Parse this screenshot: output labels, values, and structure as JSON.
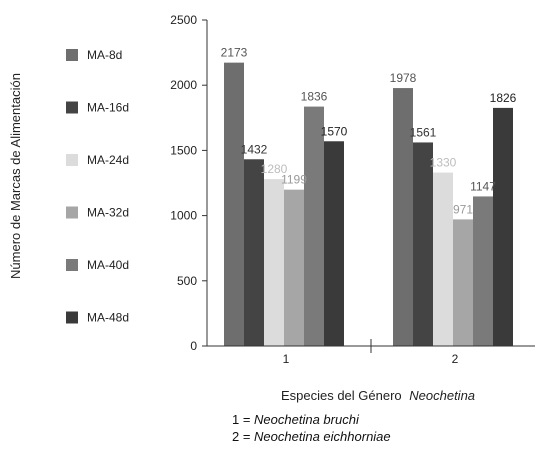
{
  "chart_data": {
    "type": "bar",
    "title": "",
    "xlabel": "Especies del Género",
    "xlabel_italic": "Neochetina",
    "ylabel": "Número de Marcas de Alimentación",
    "categories": [
      "1",
      "2"
    ],
    "ylim": [
      0,
      2500
    ],
    "yticks": [
      0,
      500,
      1000,
      1500,
      2000,
      2500
    ],
    "grid": false,
    "legend_position": "left",
    "series": [
      {
        "name": "MA-8d",
        "values": [
          2173,
          1978
        ],
        "color": "#6e6e6e",
        "label_color": "#555555"
      },
      {
        "name": "MA-16d",
        "values": [
          1432,
          1561
        ],
        "color": "#444444",
        "label_color": "#333333"
      },
      {
        "name": "MA-24d",
        "values": [
          1280,
          1330
        ],
        "color": "#dcdcdc",
        "label_color": "#bdbdbd"
      },
      {
        "name": "MA-32d",
        "values": [
          1199,
          971
        ],
        "color": "#a6a6a6",
        "label_color": "#9a9a9a"
      },
      {
        "name": "MA-40d",
        "values": [
          1836,
          1147
        ],
        "color": "#7a7a7a",
        "label_color": "#555555"
      },
      {
        "name": "MA-48d",
        "values": [
          1570,
          1826
        ],
        "color": "#3a3a3a",
        "label_color": "#222222"
      }
    ]
  },
  "notes": [
    {
      "prefix": "1 = ",
      "species": "Neochetina bruchi"
    },
    {
      "prefix": "2 = ",
      "species": "Neochetina eichhorniae"
    }
  ]
}
